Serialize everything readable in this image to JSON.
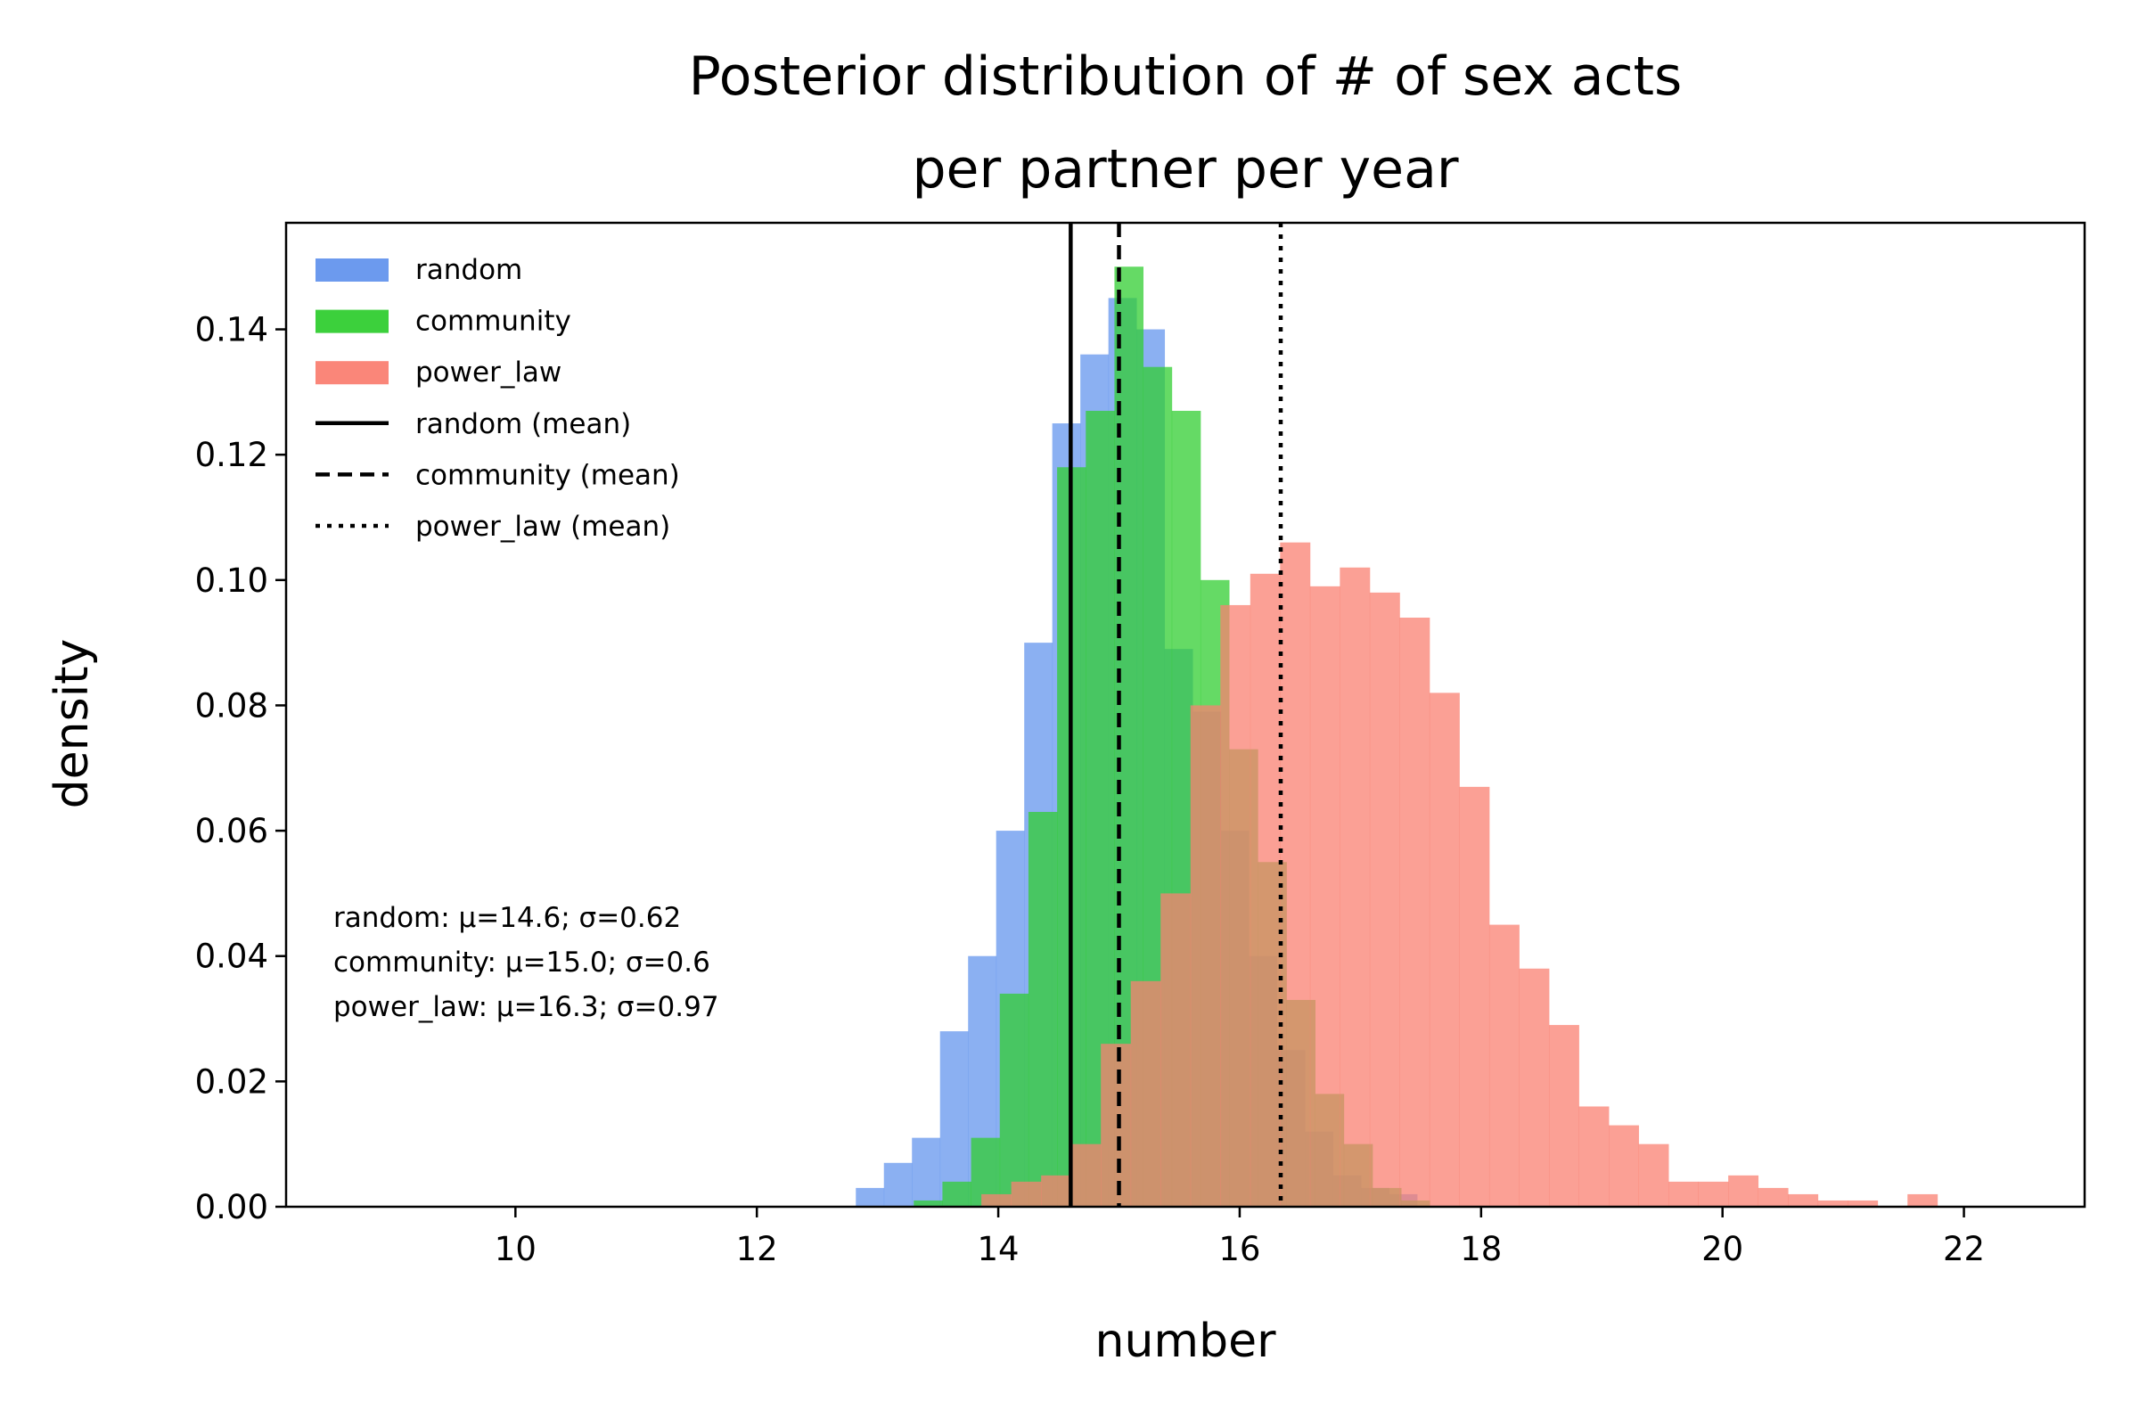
{
  "chart_data": {
    "type": "bar",
    "title_line1": "Posterior distribution of # of sex acts",
    "title_line2": "per partner per year",
    "xlabel": "number",
    "ylabel": "density",
    "xlim": [
      8.1,
      23.0
    ],
    "ylim": [
      0,
      0.157
    ],
    "x_ticks": [
      10,
      12,
      14,
      16,
      18,
      20,
      22
    ],
    "x_tick_labels": [
      "10",
      "12",
      "14",
      "16",
      "18",
      "20",
      "22"
    ],
    "y_ticks": [
      0,
      0.02,
      0.04,
      0.06,
      0.08,
      0.1,
      0.12,
      0.14
    ],
    "y_tick_labels": [
      "0.00",
      "0.02",
      "0.04",
      "0.06",
      "0.08",
      "0.10",
      "0.12",
      "0.14"
    ],
    "grid": false,
    "legend_placement": "upper-left",
    "series": [
      {
        "name": "random",
        "color": "#6495ED",
        "opacity": 0.75,
        "bin_start": 12.82,
        "bin_width": 0.2325,
        "values": [
          0.003,
          0.007,
          0.011,
          0.028,
          0.04,
          0.06,
          0.09,
          0.125,
          0.136,
          0.145,
          0.14,
          0.089,
          0.079,
          0.06,
          0.04,
          0.025,
          0.012,
          0.005,
          0.003,
          0.002
        ]
      },
      {
        "name": "community",
        "color": "#32CD32",
        "opacity": 0.75,
        "bin_start": 13.3,
        "bin_width": 0.2375,
        "values": [
          0.001,
          0.004,
          0.011,
          0.034,
          0.063,
          0.118,
          0.127,
          0.15,
          0.134,
          0.127,
          0.1,
          0.073,
          0.055,
          0.033,
          0.018,
          0.01,
          0.003,
          0.001
        ]
      },
      {
        "name": "power_law",
        "color": "#FA8072",
        "opacity": 0.75,
        "bin_start": 13.86,
        "bin_width": 0.2475,
        "values": [
          0.002,
          0.004,
          0.005,
          0.01,
          0.026,
          0.036,
          0.05,
          0.08,
          0.096,
          0.101,
          0.106,
          0.099,
          0.102,
          0.098,
          0.094,
          0.082,
          0.067,
          0.045,
          0.038,
          0.029,
          0.016,
          0.013,
          0.01,
          0.004,
          0.004,
          0.005,
          0.003,
          0.002,
          0.001,
          0.001,
          0.0,
          0.002
        ]
      }
    ],
    "mean_lines": [
      {
        "name": "random (mean)",
        "x": 14.6,
        "style": "solid"
      },
      {
        "name": "community (mean)",
        "x": 15.0,
        "style": "dashed"
      },
      {
        "name": "power_law (mean)",
        "x": 16.34,
        "style": "dotted"
      }
    ],
    "stats_text": [
      "random: μ=14.6; σ=0.62",
      "community: μ=15.0; σ=0.6",
      "power_law: μ=16.3; σ=0.97"
    ]
  }
}
